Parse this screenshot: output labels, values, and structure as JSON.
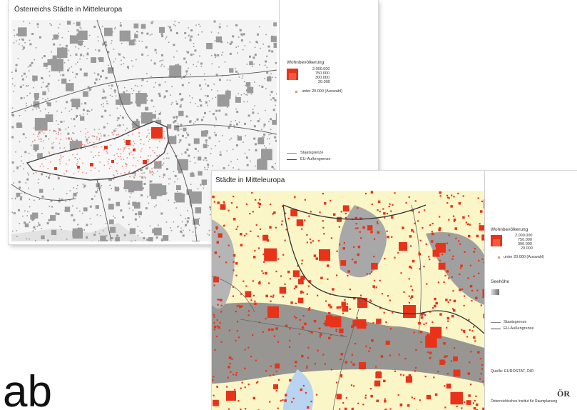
{
  "maps": {
    "back": {
      "title": "Österreichs Städte in Mitteleuropa",
      "legend_title": "Wohnbevölkerung",
      "population_classes": [
        "2.000.000",
        "750.000",
        "300.000",
        "20.000"
      ],
      "small_cities_label": "unter 20.000 (Auswahl)",
      "border_state": "Staatsgrenze",
      "border_eu": "EU-Außengrenze"
    },
    "front": {
      "title": "Städte in Mitteleuropa",
      "legend_title": "Wohnbevölkerung",
      "population_classes": [
        "2.000.000",
        "750.000",
        "300.000",
        "20.000"
      ],
      "small_cities_label": "unter 20.000 (Auswahl)",
      "elevation_label": "Seehöhe",
      "border_state": "Staatsgrenze",
      "border_eu": "EU-Außengrenze",
      "source": "Quelle: EUROSTAT, ÖIR",
      "logo_text": "ÖR",
      "institute": "Österreichisches Institut für Raumplanung"
    }
  },
  "slide_text": "ab",
  "colors": {
    "city_red": "#e8331a",
    "city_grey": "#9a9a9a",
    "land_yellow": "#fbf6c8",
    "terrain_grey": "#8c8c8c"
  }
}
